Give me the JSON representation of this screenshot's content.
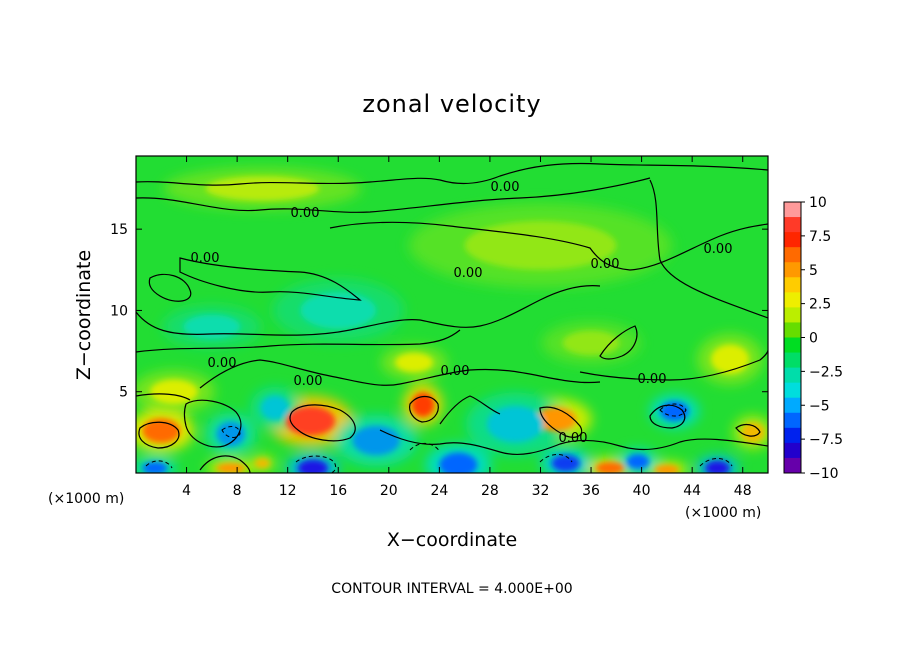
{
  "chart_data": {
    "type": "heatmap",
    "title": "zonal velocity",
    "xlabel": "X−coordinate",
    "ylabel": "Z−coordinate",
    "x_unit_left": "(×1000 m)",
    "x_unit_right": "(×1000 m)",
    "xlim": [
      0,
      50
    ],
    "ylim": [
      0,
      19.5
    ],
    "xticks": [
      4,
      8,
      12,
      16,
      20,
      24,
      28,
      32,
      36,
      40,
      44,
      48
    ],
    "yticks": [
      5,
      10,
      15
    ],
    "footer": "CONTOUR INTERVAL =  4.000E+00",
    "colorbar": {
      "min": -10,
      "max": 10,
      "ticks": [
        "10",
        "7.5",
        "5",
        "2.5",
        "0",
        "−2.5",
        "−5",
        "−7.5",
        "−10"
      ],
      "colors": [
        "#ff9a9a",
        "#ff3a28",
        "#ff2600",
        "#ff6a00",
        "#ff9900",
        "#ffcc00",
        "#eeee00",
        "#bbee00",
        "#66dd00",
        "#00dd22",
        "#00dd66",
        "#00ddaa",
        "#00dddd",
        "#00aaff",
        "#0066ff",
        "#0022ee",
        "#2200cc",
        "#6600aa"
      ]
    },
    "contour_labels": [
      "0.00",
      "0.00",
      "0.00",
      "0.00",
      "0.00",
      "0.00",
      "0.00",
      "0.00",
      "0.00",
      "0.00",
      "0.00"
    ],
    "anomalies": [
      {
        "x": 2.0,
        "z": 2.6,
        "v": 6,
        "rx": 2.0,
        "rz": 1.0
      },
      {
        "x": 13.8,
        "z": 3.2,
        "v": 8,
        "rx": 2.6,
        "rz": 1.2
      },
      {
        "x": 22.7,
        "z": 4.2,
        "v": 7,
        "rx": 1.2,
        "rz": 1.0
      },
      {
        "x": 33.2,
        "z": 3.3,
        "v": 5,
        "rx": 2.2,
        "rz": 1.0
      },
      {
        "x": 37.5,
        "z": 0.3,
        "v": 6,
        "rx": 1.5,
        "rz": 0.5
      },
      {
        "x": 42.0,
        "z": 0.2,
        "v": 5,
        "rx": 1.3,
        "rz": 0.4
      },
      {
        "x": 48.8,
        "z": 2.5,
        "v": 4,
        "rx": 1.2,
        "rz": 0.8
      },
      {
        "x": 7.5,
        "z": 0.3,
        "v": 5,
        "rx": 1.5,
        "rz": 0.4
      },
      {
        "x": 10.0,
        "z": 0.6,
        "v": 4,
        "rx": 0.8,
        "rz": 0.4
      },
      {
        "x": 14.0,
        "z": 0.3,
        "v": -7,
        "rx": 1.6,
        "rz": 0.7
      },
      {
        "x": 1.5,
        "z": 0.3,
        "v": -5,
        "rx": 1.3,
        "rz": 0.5
      },
      {
        "x": 25.5,
        "z": 0.5,
        "v": -5,
        "rx": 2.0,
        "rz": 1.0
      },
      {
        "x": 34.0,
        "z": 0.6,
        "v": -6,
        "rx": 1.5,
        "rz": 0.7
      },
      {
        "x": 39.7,
        "z": 0.7,
        "v": -5,
        "rx": 1.2,
        "rz": 0.6
      },
      {
        "x": 46.0,
        "z": 0.3,
        "v": -7,
        "rx": 1.3,
        "rz": 0.6
      },
      {
        "x": 42.6,
        "z": 3.8,
        "v": -5,
        "rx": 1.5,
        "rz": 0.8
      },
      {
        "x": 7.5,
        "z": 2.4,
        "v": -4,
        "rx": 1.5,
        "rz": 1.0
      },
      {
        "x": 19.0,
        "z": 2.0,
        "v": -4,
        "rx": 2.5,
        "rz": 1.2
      },
      {
        "x": 30.0,
        "z": 3.0,
        "v": -3,
        "rx": 3.0,
        "rz": 1.5
      },
      {
        "x": 11.0,
        "z": 4.0,
        "v": -3,
        "rx": 1.5,
        "rz": 1.0
      },
      {
        "x": 16.0,
        "z": 10.0,
        "v": -2,
        "rx": 4.0,
        "rz": 1.5
      },
      {
        "x": 6.0,
        "z": 9.0,
        "v": -2,
        "rx": 3.0,
        "rz": 1.0
      },
      {
        "x": 10.0,
        "z": 17.5,
        "v": 2,
        "rx": 6.0,
        "rz": 1.0
      },
      {
        "x": 32.0,
        "z": 14.0,
        "v": 1.5,
        "rx": 8.0,
        "rz": 2.0
      },
      {
        "x": 22.0,
        "z": 6.8,
        "v": 2.5,
        "rx": 2.0,
        "rz": 0.8
      },
      {
        "x": 36.0,
        "z": 8.0,
        "v": 1.5,
        "rx": 3.0,
        "rz": 1.0
      },
      {
        "x": 3.0,
        "z": 5.0,
        "v": 2.5,
        "rx": 2.5,
        "rz": 1.0
      },
      {
        "x": 47.0,
        "z": 7.0,
        "v": 2.5,
        "rx": 2.0,
        "rz": 1.2
      }
    ]
  }
}
